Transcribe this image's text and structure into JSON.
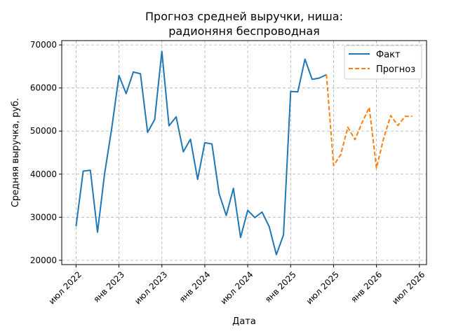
{
  "chart_data": {
    "type": "line",
    "title_line1": "Прогноз средней выручки, ниша:",
    "title_line2": "радионяня беспроводная",
    "xlabel": "Дата",
    "ylabel": "Средняя выручка, руб.",
    "grid": true,
    "legend_placement": "top-right",
    "x_ticks": [
      "июл 2022",
      "янв 2023",
      "июл 2023",
      "янв 2024",
      "июл 2024",
      "янв 2025",
      "июл 2025",
      "янв 2026",
      "июл 2026"
    ],
    "y_ticks": [
      20000,
      30000,
      40000,
      50000,
      60000,
      70000
    ],
    "ylim": [
      19000,
      71000
    ],
    "xlim": [
      "2022-05",
      "2026-08"
    ],
    "series": [
      {
        "name": "Факт",
        "color": "#1f77b4",
        "style": "solid",
        "x": [
          "2022-07",
          "2022-08",
          "2022-09",
          "2022-10",
          "2022-11",
          "2022-12",
          "2023-01",
          "2023-02",
          "2023-03",
          "2023-04",
          "2023-05",
          "2023-06",
          "2023-07",
          "2023-08",
          "2023-09",
          "2023-10",
          "2023-11",
          "2023-12",
          "2024-01",
          "2024-02",
          "2024-03",
          "2024-04",
          "2024-05",
          "2024-06",
          "2024-07",
          "2024-08",
          "2024-09",
          "2024-10",
          "2024-11",
          "2024-12",
          "2025-01",
          "2025-02",
          "2025-03",
          "2025-04",
          "2025-05",
          "2025-06"
        ],
        "values": [
          27900,
          40700,
          40900,
          26500,
          40200,
          50800,
          62900,
          58700,
          63700,
          63300,
          49700,
          52700,
          68500,
          51200,
          53300,
          45200,
          48100,
          38800,
          47300,
          47000,
          35500,
          30400,
          36700,
          25300,
          31600,
          29900,
          31200,
          27800,
          21300,
          25900,
          59200,
          59100,
          66700,
          62000,
          62300,
          63100
        ]
      },
      {
        "name": "Прогноз",
        "color": "#ff7f0e",
        "style": "dashed",
        "x": [
          "2025-06",
          "2025-07",
          "2025-08",
          "2025-09",
          "2025-10",
          "2025-11",
          "2025-12",
          "2026-01",
          "2026-02",
          "2026-03",
          "2026-04",
          "2026-05",
          "2026-06"
        ],
        "values": [
          63100,
          42000,
          44500,
          50900,
          48000,
          52000,
          55500,
          41400,
          48300,
          53600,
          51300,
          53400,
          53400
        ]
      }
    ]
  }
}
